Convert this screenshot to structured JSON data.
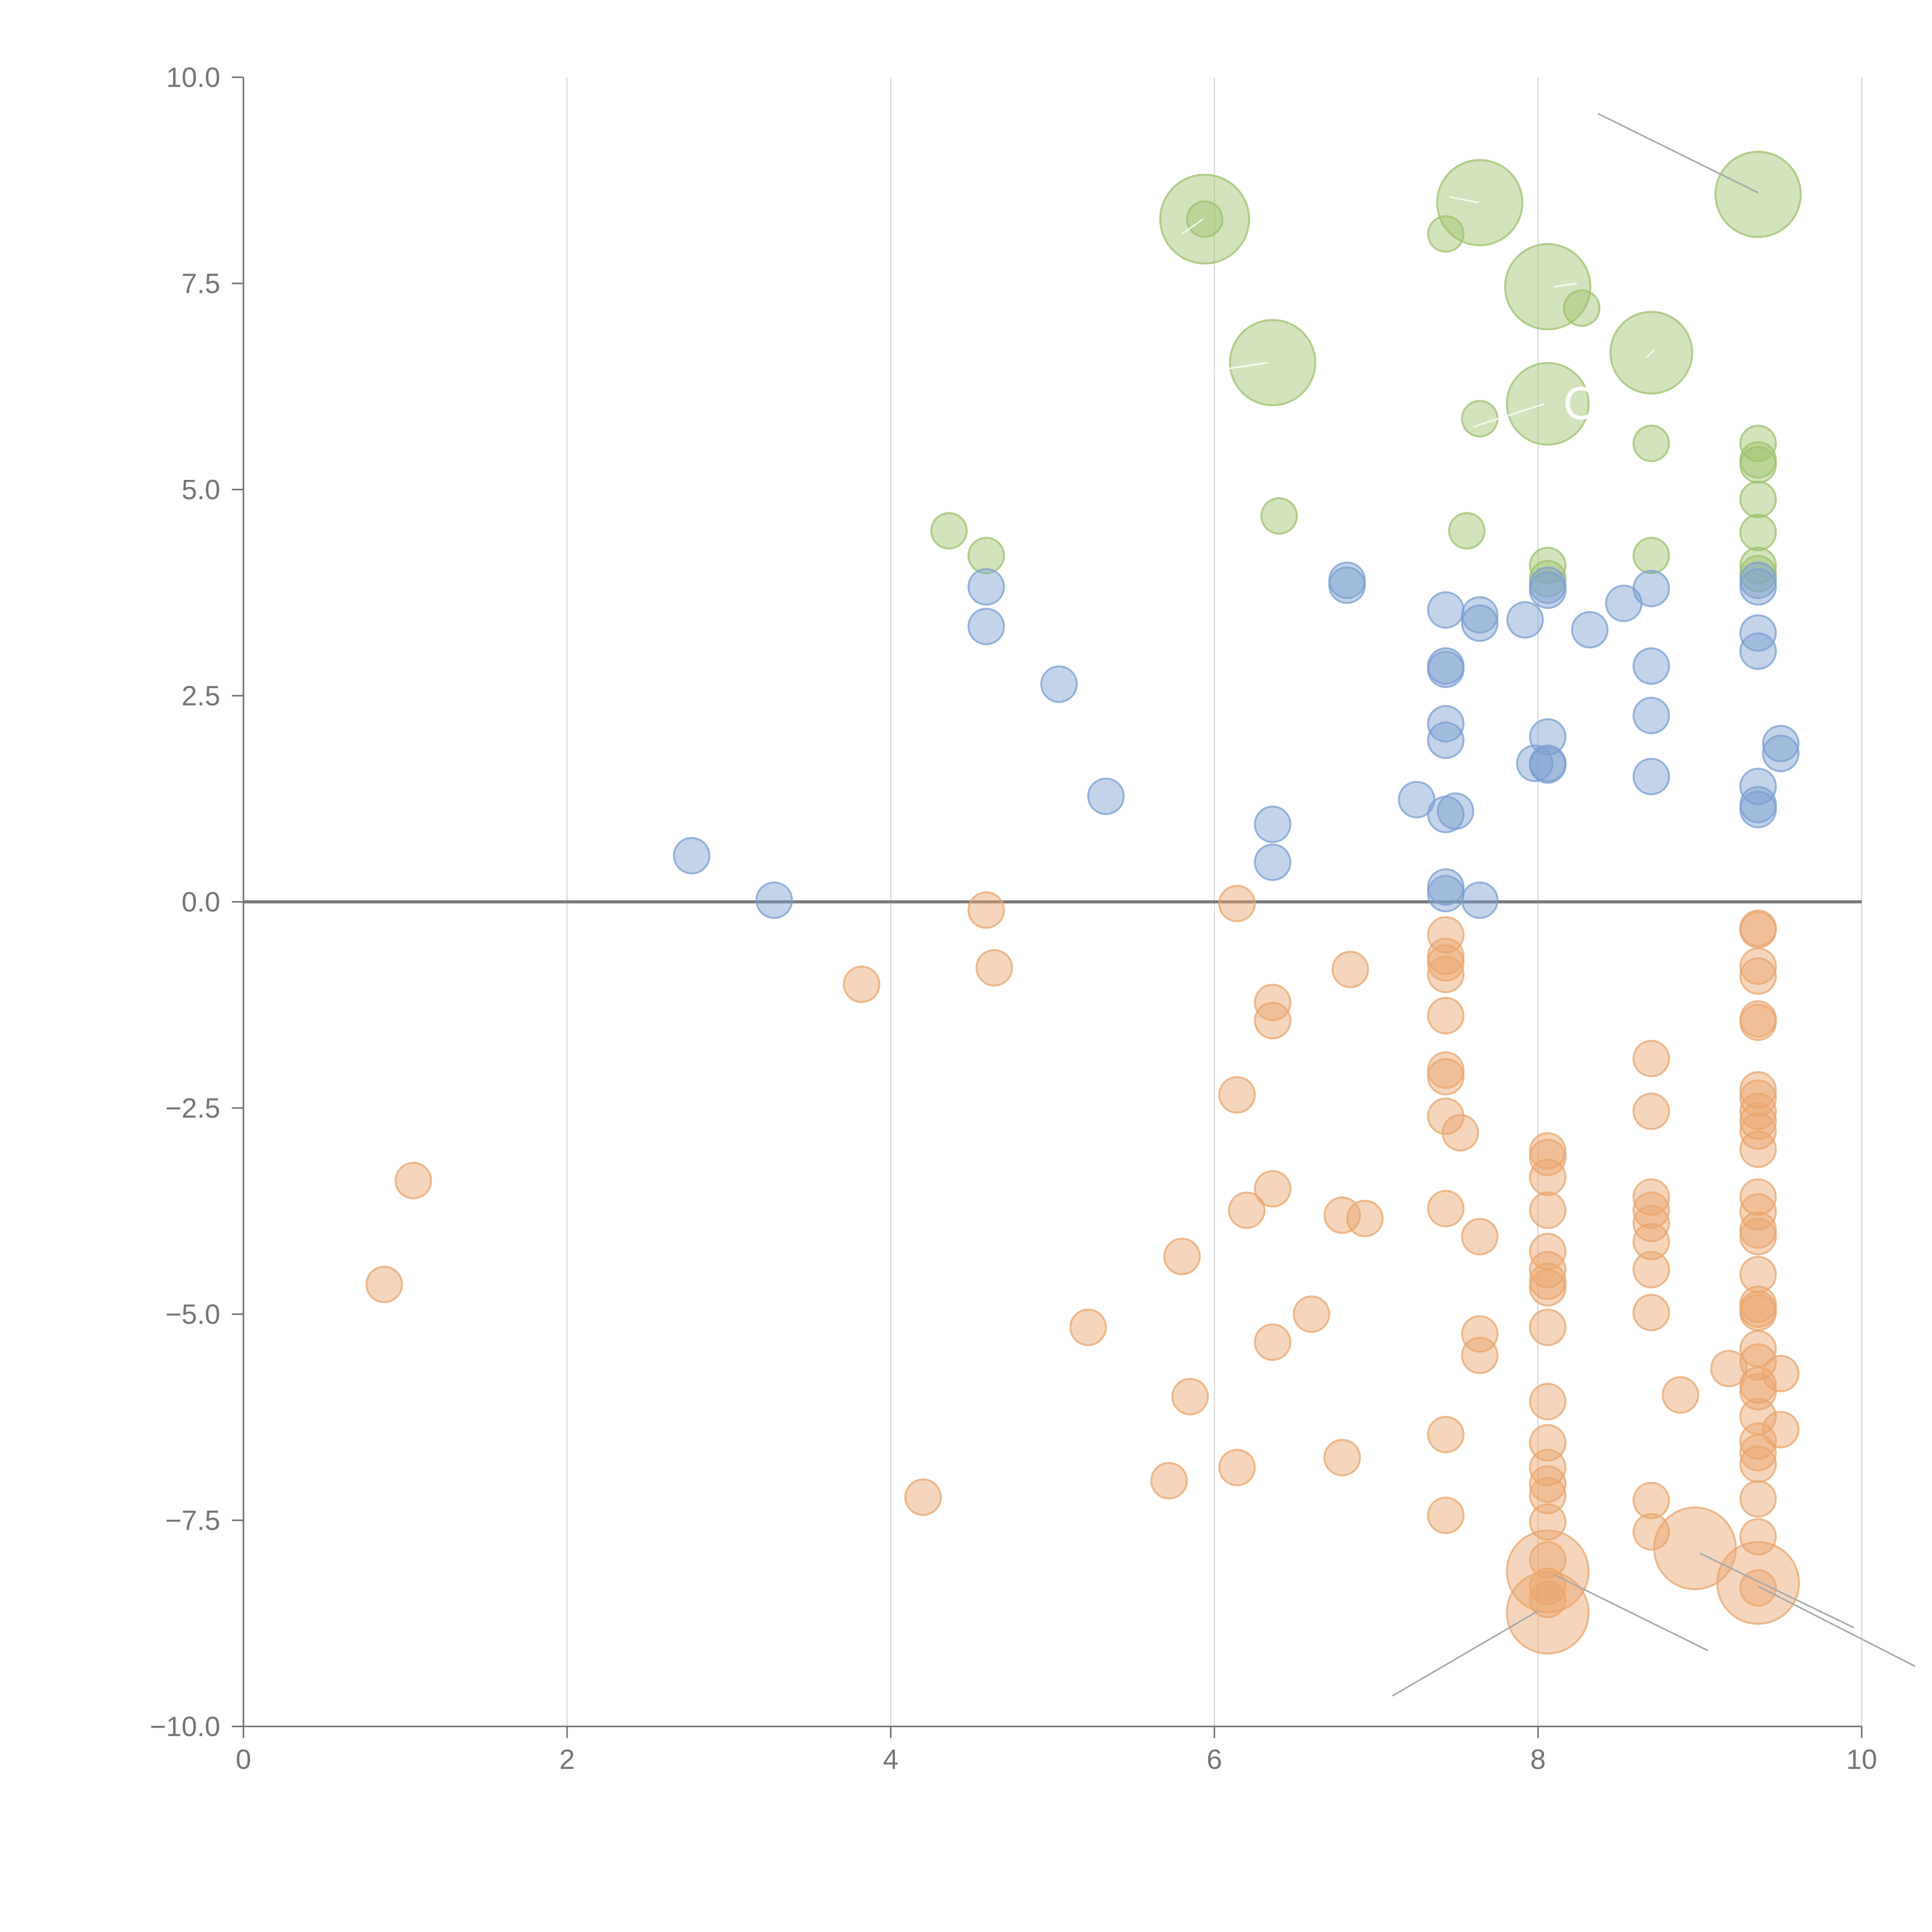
{
  "chart_data": {
    "type": "scatter",
    "title": "",
    "xlabel": "",
    "ylabel": "",
    "xlim": [
      0,
      10
    ],
    "ylim": [
      -10,
      10
    ],
    "x_ticks": [
      0,
      2,
      4,
      6,
      8,
      10
    ],
    "x_tick_labels": [
      "0",
      "2",
      "4",
      "6",
      "8",
      "10"
    ],
    "y_ticks": [
      10,
      7.5,
      5,
      2.5,
      0,
      -2.5,
      -5,
      -7.5,
      -10
    ],
    "y_tick_labels": [
      "10.0",
      "7.5",
      "5.0",
      "2.5",
      "0.0",
      "−2.5",
      "−5.0",
      "−7.5",
      "−10.0"
    ],
    "grid": "vertical",
    "reference_line_y": 0,
    "series": [
      {
        "name": "green",
        "color": "#9dc26b",
        "points": [
          {
            "x": 4.36,
            "y": 4.5,
            "r": 1
          },
          {
            "x": 4.59,
            "y": 4.2,
            "r": 1
          },
          {
            "x": 5.94,
            "y": 8.28,
            "r": 1
          },
          {
            "x": 5.94,
            "y": 8.28,
            "r": 2.5
          },
          {
            "x": 6.36,
            "y": 6.54,
            "r": 2.4
          },
          {
            "x": 6.4,
            "y": 4.68,
            "r": 1
          },
          {
            "x": 7.43,
            "y": 8.1,
            "r": 1
          },
          {
            "x": 7.64,
            "y": 8.48,
            "r": 2.4
          },
          {
            "x": 7.64,
            "y": 5.86,
            "r": 1
          },
          {
            "x": 7.56,
            "y": 4.5,
            "r": 1
          },
          {
            "x": 8.06,
            "y": 7.46,
            "r": 2.4
          },
          {
            "x": 8.27,
            "y": 7.2,
            "r": 1
          },
          {
            "x": 8.06,
            "y": 6.04,
            "r": 2.3
          },
          {
            "x": 8.06,
            "y": 4.08,
            "r": 1
          },
          {
            "x": 8.06,
            "y": 3.92,
            "r": 1
          },
          {
            "x": 8.7,
            "y": 6.66,
            "r": 2.3
          },
          {
            "x": 8.7,
            "y": 5.56,
            "r": 1
          },
          {
            "x": 8.7,
            "y": 4.2,
            "r": 1
          },
          {
            "x": 9.36,
            "y": 8.58,
            "r": 2.4
          },
          {
            "x": 9.36,
            "y": 5.56,
            "r": 1
          },
          {
            "x": 9.36,
            "y": 5.36,
            "r": 1
          },
          {
            "x": 9.36,
            "y": 5.3,
            "r": 1
          },
          {
            "x": 9.36,
            "y": 4.88,
            "r": 1
          },
          {
            "x": 9.36,
            "y": 4.48,
            "r": 1
          },
          {
            "x": 9.36,
            "y": 4.08,
            "r": 1
          },
          {
            "x": 9.36,
            "y": 3.98,
            "r": 1
          }
        ]
      },
      {
        "name": "blue",
        "color": "#7b9fd1",
        "points": [
          {
            "x": 2.77,
            "y": 0.56,
            "r": 1
          },
          {
            "x": 3.28,
            "y": 0.02,
            "r": 1
          },
          {
            "x": 4.59,
            "y": 3.82,
            "r": 1
          },
          {
            "x": 4.59,
            "y": 3.34,
            "r": 1
          },
          {
            "x": 5.04,
            "y": 2.64,
            "r": 1
          },
          {
            "x": 5.33,
            "y": 1.28,
            "r": 1
          },
          {
            "x": 6.36,
            "y": 0.94,
            "r": 1
          },
          {
            "x": 6.36,
            "y": 0.48,
            "r": 1
          },
          {
            "x": 6.82,
            "y": 3.9,
            "r": 1
          },
          {
            "x": 6.82,
            "y": 3.84,
            "r": 1
          },
          {
            "x": 7.25,
            "y": 1.24,
            "r": 1
          },
          {
            "x": 7.43,
            "y": 3.54,
            "r": 1
          },
          {
            "x": 7.43,
            "y": 2.86,
            "r": 1
          },
          {
            "x": 7.43,
            "y": 2.82,
            "r": 1
          },
          {
            "x": 7.43,
            "y": 2.16,
            "r": 1
          },
          {
            "x": 7.43,
            "y": 1.96,
            "r": 1
          },
          {
            "x": 7.43,
            "y": 1.06,
            "r": 1
          },
          {
            "x": 7.49,
            "y": 1.1,
            "r": 1
          },
          {
            "x": 7.43,
            "y": 0.18,
            "r": 1
          },
          {
            "x": 7.43,
            "y": 0.1,
            "r": 1
          },
          {
            "x": 7.64,
            "y": 3.48,
            "r": 1
          },
          {
            "x": 7.64,
            "y": 3.38,
            "r": 1
          },
          {
            "x": 7.64,
            "y": 0.02,
            "r": 1
          },
          {
            "x": 7.92,
            "y": 3.42,
            "r": 1
          },
          {
            "x": 8.06,
            "y": 3.84,
            "r": 1
          },
          {
            "x": 8.06,
            "y": 3.78,
            "r": 1
          },
          {
            "x": 8.06,
            "y": 2.0,
            "r": 1
          },
          {
            "x": 7.98,
            "y": 1.68,
            "r": 1
          },
          {
            "x": 8.06,
            "y": 1.68,
            "r": 1
          },
          {
            "x": 8.06,
            "y": 1.66,
            "r": 1
          },
          {
            "x": 8.32,
            "y": 3.3,
            "r": 1
          },
          {
            "x": 8.53,
            "y": 3.62,
            "r": 1
          },
          {
            "x": 8.7,
            "y": 3.8,
            "r": 1
          },
          {
            "x": 8.7,
            "y": 2.86,
            "r": 1
          },
          {
            "x": 8.7,
            "y": 2.26,
            "r": 1
          },
          {
            "x": 8.7,
            "y": 1.52,
            "r": 1
          },
          {
            "x": 9.36,
            "y": 3.9,
            "r": 1
          },
          {
            "x": 9.36,
            "y": 3.82,
            "r": 1
          },
          {
            "x": 9.36,
            "y": 3.26,
            "r": 1
          },
          {
            "x": 9.36,
            "y": 3.04,
            "r": 1
          },
          {
            "x": 9.36,
            "y": 1.4,
            "r": 1
          },
          {
            "x": 9.36,
            "y": 1.18,
            "r": 1
          },
          {
            "x": 9.36,
            "y": 1.12,
            "r": 1
          },
          {
            "x": 9.5,
            "y": 1.92,
            "r": 1
          },
          {
            "x": 9.5,
            "y": 1.8,
            "r": 1
          }
        ]
      },
      {
        "name": "orange",
        "color": "#e9a56c",
        "points": [
          {
            "x": 0.87,
            "y": -4.64,
            "r": 1
          },
          {
            "x": 1.05,
            "y": -3.38,
            "r": 1
          },
          {
            "x": 3.82,
            "y": -1.0,
            "r": 1
          },
          {
            "x": 4.2,
            "y": -7.22,
            "r": 1
          },
          {
            "x": 4.59,
            "y": -0.1,
            "r": 1
          },
          {
            "x": 4.64,
            "y": -0.8,
            "r": 1
          },
          {
            "x": 5.22,
            "y": -5.16,
            "r": 1
          },
          {
            "x": 5.72,
            "y": -7.02,
            "r": 1
          },
          {
            "x": 5.8,
            "y": -4.3,
            "r": 1
          },
          {
            "x": 5.85,
            "y": -6.0,
            "r": 1
          },
          {
            "x": 6.14,
            "y": -0.02,
            "r": 1
          },
          {
            "x": 6.14,
            "y": -2.34,
            "r": 1
          },
          {
            "x": 6.14,
            "y": -6.86,
            "r": 1
          },
          {
            "x": 6.2,
            "y": -3.74,
            "r": 1
          },
          {
            "x": 6.36,
            "y": -1.22,
            "r": 1
          },
          {
            "x": 6.36,
            "y": -1.44,
            "r": 1
          },
          {
            "x": 6.36,
            "y": -3.48,
            "r": 1
          },
          {
            "x": 6.36,
            "y": -5.34,
            "r": 1
          },
          {
            "x": 6.6,
            "y": -5.0,
            "r": 1
          },
          {
            "x": 6.79,
            "y": -3.8,
            "r": 1
          },
          {
            "x": 6.79,
            "y": -6.74,
            "r": 1
          },
          {
            "x": 6.84,
            "y": -0.82,
            "r": 1
          },
          {
            "x": 6.93,
            "y": -3.84,
            "r": 1
          },
          {
            "x": 7.43,
            "y": -0.4,
            "r": 1
          },
          {
            "x": 7.43,
            "y": -0.66,
            "r": 1
          },
          {
            "x": 7.43,
            "y": -0.74,
            "r": 1
          },
          {
            "x": 7.43,
            "y": -0.88,
            "r": 1
          },
          {
            "x": 7.43,
            "y": -1.38,
            "r": 1
          },
          {
            "x": 7.43,
            "y": -2.04,
            "r": 1
          },
          {
            "x": 7.43,
            "y": -2.12,
            "r": 1
          },
          {
            "x": 7.43,
            "y": -2.6,
            "r": 1
          },
          {
            "x": 7.52,
            "y": -2.8,
            "r": 1
          },
          {
            "x": 7.43,
            "y": -3.72,
            "r": 1
          },
          {
            "x": 7.43,
            "y": -6.46,
            "r": 1
          },
          {
            "x": 7.43,
            "y": -7.44,
            "r": 1
          },
          {
            "x": 7.64,
            "y": -4.06,
            "r": 1
          },
          {
            "x": 7.64,
            "y": -5.24,
            "r": 1
          },
          {
            "x": 7.64,
            "y": -5.5,
            "r": 1
          },
          {
            "x": 8.06,
            "y": -3.02,
            "r": 1
          },
          {
            "x": 8.06,
            "y": -3.1,
            "r": 1
          },
          {
            "x": 8.06,
            "y": -3.34,
            "r": 1
          },
          {
            "x": 8.06,
            "y": -3.74,
            "r": 1
          },
          {
            "x": 8.06,
            "y": -4.24,
            "r": 1
          },
          {
            "x": 8.06,
            "y": -4.46,
            "r": 1
          },
          {
            "x": 8.06,
            "y": -4.6,
            "r": 1
          },
          {
            "x": 8.06,
            "y": -4.68,
            "r": 1
          },
          {
            "x": 8.06,
            "y": -5.16,
            "r": 1
          },
          {
            "x": 8.06,
            "y": -6.06,
            "r": 1
          },
          {
            "x": 8.06,
            "y": -6.56,
            "r": 1
          },
          {
            "x": 8.06,
            "y": -6.86,
            "r": 1
          },
          {
            "x": 8.06,
            "y": -7.06,
            "r": 1
          },
          {
            "x": 8.06,
            "y": -7.2,
            "r": 1
          },
          {
            "x": 8.06,
            "y": -7.52,
            "r": 1
          },
          {
            "x": 8.06,
            "y": -7.98,
            "r": 1
          },
          {
            "x": 8.06,
            "y": -8.12,
            "r": 2.3
          },
          {
            "x": 8.06,
            "y": -8.3,
            "r": 1
          },
          {
            "x": 8.06,
            "y": -8.46,
            "r": 1
          },
          {
            "x": 8.06,
            "y": -8.62,
            "r": 2.3
          },
          {
            "x": 8.7,
            "y": -1.9,
            "r": 1
          },
          {
            "x": 8.7,
            "y": -2.54,
            "r": 1
          },
          {
            "x": 8.7,
            "y": -3.58,
            "r": 1
          },
          {
            "x": 8.7,
            "y": -3.74,
            "r": 1
          },
          {
            "x": 8.7,
            "y": -3.9,
            "r": 1
          },
          {
            "x": 8.7,
            "y": -4.12,
            "r": 1
          },
          {
            "x": 8.7,
            "y": -4.46,
            "r": 1
          },
          {
            "x": 8.7,
            "y": -4.98,
            "r": 1
          },
          {
            "x": 8.7,
            "y": -7.26,
            "r": 1
          },
          {
            "x": 8.7,
            "y": -7.64,
            "r": 1
          },
          {
            "x": 8.88,
            "y": -5.98,
            "r": 1
          },
          {
            "x": 8.97,
            "y": -7.84,
            "r": 2.3
          },
          {
            "x": 9.18,
            "y": -5.66,
            "r": 1
          },
          {
            "x": 9.36,
            "y": -0.32,
            "r": 1
          },
          {
            "x": 9.36,
            "y": -0.34,
            "r": 1
          },
          {
            "x": 9.36,
            "y": -0.78,
            "r": 1
          },
          {
            "x": 9.36,
            "y": -0.9,
            "r": 1
          },
          {
            "x": 9.36,
            "y": -1.42,
            "r": 1
          },
          {
            "x": 9.36,
            "y": -1.46,
            "r": 1
          },
          {
            "x": 9.36,
            "y": -2.28,
            "r": 1
          },
          {
            "x": 9.36,
            "y": -2.38,
            "r": 1
          },
          {
            "x": 9.36,
            "y": -2.54,
            "r": 1
          },
          {
            "x": 9.36,
            "y": -2.66,
            "r": 1
          },
          {
            "x": 9.36,
            "y": -2.78,
            "r": 1
          },
          {
            "x": 9.36,
            "y": -3.0,
            "r": 1
          },
          {
            "x": 9.36,
            "y": -3.58,
            "r": 1
          },
          {
            "x": 9.36,
            "y": -3.76,
            "r": 1
          },
          {
            "x": 9.36,
            "y": -3.98,
            "r": 1
          },
          {
            "x": 9.36,
            "y": -4.06,
            "r": 1
          },
          {
            "x": 9.36,
            "y": -4.52,
            "r": 1
          },
          {
            "x": 9.36,
            "y": -4.88,
            "r": 1
          },
          {
            "x": 9.36,
            "y": -4.94,
            "r": 1
          },
          {
            "x": 9.36,
            "y": -4.98,
            "r": 1
          },
          {
            "x": 9.36,
            "y": -5.42,
            "r": 1
          },
          {
            "x": 9.36,
            "y": -5.58,
            "r": 1
          },
          {
            "x": 9.36,
            "y": -5.86,
            "r": 1
          },
          {
            "x": 9.36,
            "y": -5.94,
            "r": 1
          },
          {
            "x": 9.36,
            "y": -6.24,
            "r": 1
          },
          {
            "x": 9.36,
            "y": -6.54,
            "r": 1
          },
          {
            "x": 9.36,
            "y": -6.68,
            "r": 1
          },
          {
            "x": 9.36,
            "y": -6.82,
            "r": 1
          },
          {
            "x": 9.36,
            "y": -7.24,
            "r": 1
          },
          {
            "x": 9.36,
            "y": -7.7,
            "r": 1
          },
          {
            "x": 9.36,
            "y": -8.26,
            "r": 2.3
          },
          {
            "x": 9.36,
            "y": -8.32,
            "r": 1
          },
          {
            "x": 9.5,
            "y": -5.72,
            "r": 1
          },
          {
            "x": 9.5,
            "y": -6.4,
            "r": 1
          }
        ]
      }
    ],
    "annotations": [
      {
        "text": "C",
        "x": 8.06,
        "y": 6.04,
        "color": "#ffffff"
      }
    ]
  },
  "leader_lines": [
    {
      "x1": 8.37,
      "y1": 9.56,
      "x2": 9.36,
      "y2": 8.6,
      "style": "gray"
    },
    {
      "x1": 7.1,
      "y1": -9.63,
      "x2": 8.0,
      "y2": -8.6,
      "style": "gray"
    },
    {
      "x1": 8.1,
      "y1": -8.16,
      "x2": 9.05,
      "y2": -9.08,
      "style": "gray"
    },
    {
      "x1": 9.0,
      "y1": -7.9,
      "x2": 9.95,
      "y2": -8.8,
      "style": "gray"
    },
    {
      "x1": 9.36,
      "y1": -8.3,
      "x2": 10.33,
      "y2": -9.27,
      "style": "gray"
    },
    {
      "x1": 7.45,
      "y1": 8.55,
      "x2": 7.63,
      "y2": 8.48,
      "style": "light"
    },
    {
      "x1": 5.8,
      "y1": 8.1,
      "x2": 5.93,
      "y2": 8.28,
      "style": "light"
    },
    {
      "x1": 6.0,
      "y1": 6.44,
      "x2": 6.33,
      "y2": 6.54,
      "style": "light"
    },
    {
      "x1": 7.6,
      "y1": 5.76,
      "x2": 8.04,
      "y2": 6.04,
      "style": "light"
    },
    {
      "x1": 8.1,
      "y1": 7.46,
      "x2": 8.24,
      "y2": 7.5,
      "style": "light"
    },
    {
      "x1": 8.67,
      "y1": 6.6,
      "x2": 8.72,
      "y2": 6.7,
      "style": "light"
    }
  ]
}
